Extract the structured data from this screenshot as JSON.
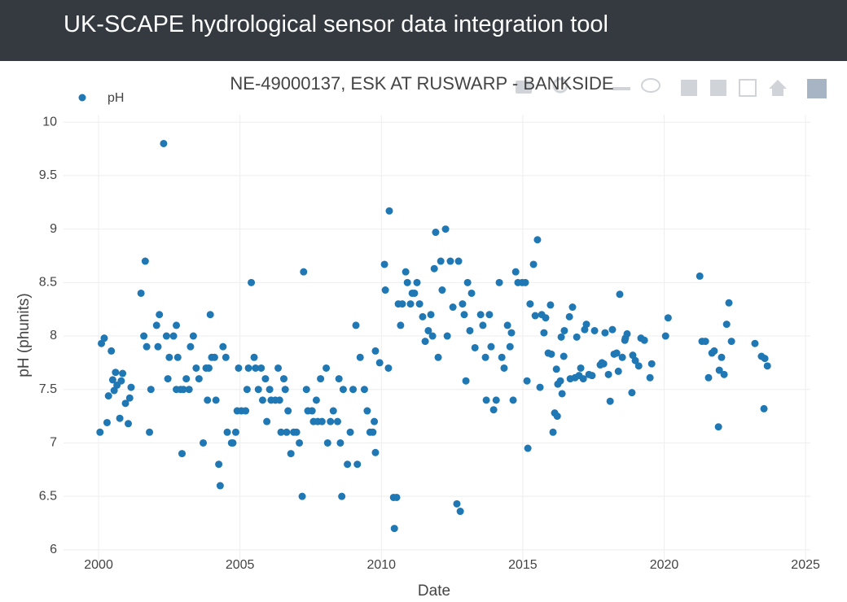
{
  "header": {
    "title": "UK-SCAPE hydrological sensor data integration tool"
  },
  "chart_data": {
    "type": "scatter",
    "title": "NE-49000137, ESK AT RUSWARP - BANKSIDE",
    "xlabel": "Date",
    "ylabel": "pH (phunits)",
    "legend": "top-left",
    "grid": true,
    "xlim": [
      1998.76,
      2025.17
    ],
    "ylim": [
      5.9,
      10.07
    ],
    "xticks": [
      2000,
      2005,
      2010,
      2015,
      2020,
      2025
    ],
    "yticks": [
      6,
      6.5,
      7,
      7.5,
      8,
      8.5,
      9,
      9.5,
      10
    ],
    "series": [
      {
        "name": "pH",
        "color": "#1f77b4",
        "x": [
          2000.05,
          2000.1,
          2000.2,
          2000.3,
          2000.35,
          2000.45,
          2000.5,
          2000.55,
          2000.6,
          2000.65,
          2000.75,
          2000.8,
          2000.85,
          2000.95,
          2001.05,
          2001.1,
          2001.15,
          2001.5,
          2001.6,
          2001.65,
          2001.7,
          2001.8,
          2001.85,
          2002.05,
          2002.1,
          2002.15,
          2002.3,
          2002.4,
          2002.45,
          2002.5,
          2002.65,
          2002.75,
          2002.75,
          2002.8,
          2002.9,
          2002.95,
          2003.0,
          2003.1,
          2003.2,
          2003.25,
          2003.35,
          2003.45,
          2003.55,
          2003.7,
          2003.8,
          2003.85,
          2003.9,
          2003.95,
          2004.0,
          2004.1,
          2004.15,
          2004.25,
          2004.3,
          2004.4,
          2004.5,
          2004.55,
          2004.7,
          2004.75,
          2004.85,
          2004.9,
          2004.95,
          2005.05,
          2005.2,
          2005.25,
          2005.3,
          2005.4,
          2005.5,
          2005.55,
          2005.65,
          2005.75,
          2005.8,
          2005.9,
          2005.95,
          2006.05,
          2006.1,
          2006.25,
          2006.35,
          2006.4,
          2006.45,
          2006.55,
          2006.6,
          2006.65,
          2006.7,
          2006.8,
          2006.9,
          2007.0,
          2007.1,
          2007.2,
          2007.25,
          2007.35,
          2007.4,
          2007.55,
          2007.6,
          2007.7,
          2007.75,
          2007.85,
          2007.9,
          2008.05,
          2008.1,
          2008.2,
          2008.3,
          2008.45,
          2008.5,
          2008.55,
          2008.6,
          2008.65,
          2008.8,
          2008.9,
          2009.0,
          2009.1,
          2009.15,
          2009.25,
          2009.4,
          2009.5,
          2009.6,
          2009.7,
          2009.75,
          2009.79,
          2009.79,
          2009.94,
          2010.11,
          2010.14,
          2010.25,
          2010.28,
          2010.43,
          2010.46,
          2010.54,
          2010.6,
          2010.68,
          2010.74,
          2010.86,
          2010.92,
          2011.03,
          2011.09,
          2011.17,
          2011.26,
          2011.35,
          2011.46,
          2011.55,
          2011.66,
          2011.75,
          2011.81,
          2011.87,
          2011.92,
          2012.01,
          2012.1,
          2012.15,
          2012.27,
          2012.33,
          2012.44,
          2012.53,
          2012.67,
          2012.73,
          2012.79,
          2012.87,
          2012.93,
          2012.99,
          2013.05,
          2013.13,
          2013.19,
          2013.31,
          2013.51,
          2013.59,
          2013.68,
          2013.71,
          2013.82,
          2013.88,
          2013.97,
          2014.06,
          2014.17,
          2014.26,
          2014.34,
          2014.46,
          2014.55,
          2014.6,
          2014.66,
          2014.75,
          2014.83,
          2014.98,
          2015.09,
          2015.15,
          2015.18,
          2015.26,
          2015.38,
          2015.44,
          2015.52,
          2015.61,
          2015.67,
          2015.75,
          2015.81,
          2015.9,
          2015.98,
          2016.01,
          2016.07,
          2016.13,
          2016.22,
          2016.19,
          2016.24,
          2016.33,
          2016.36,
          2016.39,
          2016.45,
          2016.47,
          2016.65,
          2016.68,
          2016.76,
          2016.85,
          2016.91,
          2016.99,
          2017.05,
          2017.14,
          2017.19,
          2017.25,
          2017.34,
          2017.45,
          2017.54,
          2017.74,
          2017.8,
          2017.86,
          2017.91,
          2018.03,
          2018.09,
          2018.17,
          2018.23,
          2018.32,
          2018.38,
          2018.43,
          2018.52,
          2018.61,
          2018.63,
          2018.69,
          2018.86,
          2018.89,
          2018.98,
          2019.1,
          2019.18,
          2019.3,
          2019.5,
          2019.56,
          2020.05,
          2020.14,
          2021.26,
          2021.34,
          2021.46,
          2021.57,
          2021.69,
          2021.77,
          2021.92,
          2021.95,
          2022.03,
          2022.12,
          2022.21,
          2022.29,
          2022.38,
          2023.21,
          2023.44,
          2023.53,
          2023.56,
          2023.65
        ],
        "values": [
          7.1,
          7.93,
          7.98,
          7.19,
          7.44,
          7.86,
          7.59,
          7.49,
          7.66,
          7.54,
          7.23,
          7.58,
          7.65,
          7.37,
          7.18,
          7.42,
          7.52,
          8.4,
          8.0,
          8.7,
          7.9,
          7.1,
          7.5,
          8.1,
          7.9,
          8.2,
          9.8,
          8.0,
          7.6,
          7.8,
          8.0,
          8.1,
          7.5,
          7.8,
          7.5,
          6.9,
          7.5,
          7.6,
          7.5,
          7.9,
          8.0,
          7.7,
          7.6,
          7.0,
          7.7,
          7.4,
          7.7,
          8.2,
          7.8,
          7.8,
          7.4,
          6.8,
          6.6,
          7.9,
          7.8,
          7.1,
          7.0,
          7.0,
          7.1,
          7.3,
          7.7,
          7.3,
          7.3,
          7.5,
          7.7,
          8.5,
          7.8,
          7.7,
          7.5,
          7.7,
          7.4,
          7.6,
          7.2,
          7.5,
          7.4,
          7.4,
          7.7,
          7.4,
          7.1,
          7.6,
          7.5,
          7.1,
          7.3,
          6.9,
          7.1,
          7.1,
          7.0,
          6.5,
          8.6,
          7.5,
          7.3,
          7.3,
          7.2,
          7.4,
          7.2,
          7.6,
          7.2,
          7.7,
          7.0,
          7.2,
          7.3,
          7.2,
          7.6,
          7.0,
          6.5,
          7.5,
          6.8,
          7.1,
          7.5,
          8.1,
          6.8,
          7.8,
          7.5,
          7.3,
          7.1,
          7.1,
          7.2,
          6.91,
          7.86,
          7.75,
          8.67,
          8.43,
          7.7,
          9.17,
          6.49,
          6.2,
          6.49,
          8.3,
          8.1,
          8.3,
          8.6,
          8.5,
          8.3,
          8.4,
          8.4,
          8.5,
          8.3,
          8.18,
          7.95,
          8.05,
          8.2,
          8.0,
          8.63,
          8.97,
          7.8,
          8.7,
          8.43,
          9.0,
          8.0,
          8.7,
          8.27,
          6.43,
          8.7,
          6.36,
          8.3,
          8.2,
          7.58,
          8.5,
          8.05,
          8.4,
          7.89,
          8.2,
          8.1,
          7.8,
          7.4,
          8.2,
          7.9,
          7.31,
          7.4,
          8.5,
          7.8,
          7.7,
          8.1,
          7.9,
          8.03,
          7.4,
          8.6,
          8.5,
          8.5,
          8.5,
          7.58,
          6.95,
          8.3,
          8.67,
          8.19,
          8.9,
          7.52,
          8.2,
          8.03,
          8.17,
          7.84,
          8.29,
          7.83,
          7.1,
          7.28,
          7.25,
          7.69,
          7.55,
          7.58,
          7.99,
          7.46,
          7.81,
          8.05,
          8.18,
          7.6,
          8.27,
          7.61,
          7.99,
          7.63,
          7.7,
          7.6,
          8.06,
          8.11,
          7.64,
          7.63,
          8.05,
          7.73,
          7.75,
          7.74,
          8.03,
          7.64,
          7.39,
          8.06,
          7.83,
          7.84,
          7.67,
          8.39,
          7.8,
          7.96,
          7.98,
          8.02,
          7.47,
          7.82,
          7.77,
          7.72,
          7.98,
          7.96,
          7.61,
          7.74,
          8.0,
          8.17,
          8.56,
          7.95,
          7.95,
          7.61,
          7.84,
          7.86,
          7.15,
          7.68,
          7.8,
          7.64,
          8.11,
          8.31,
          7.95,
          7.93,
          7.81,
          7.32,
          7.79,
          7.72
        ]
      }
    ]
  }
}
